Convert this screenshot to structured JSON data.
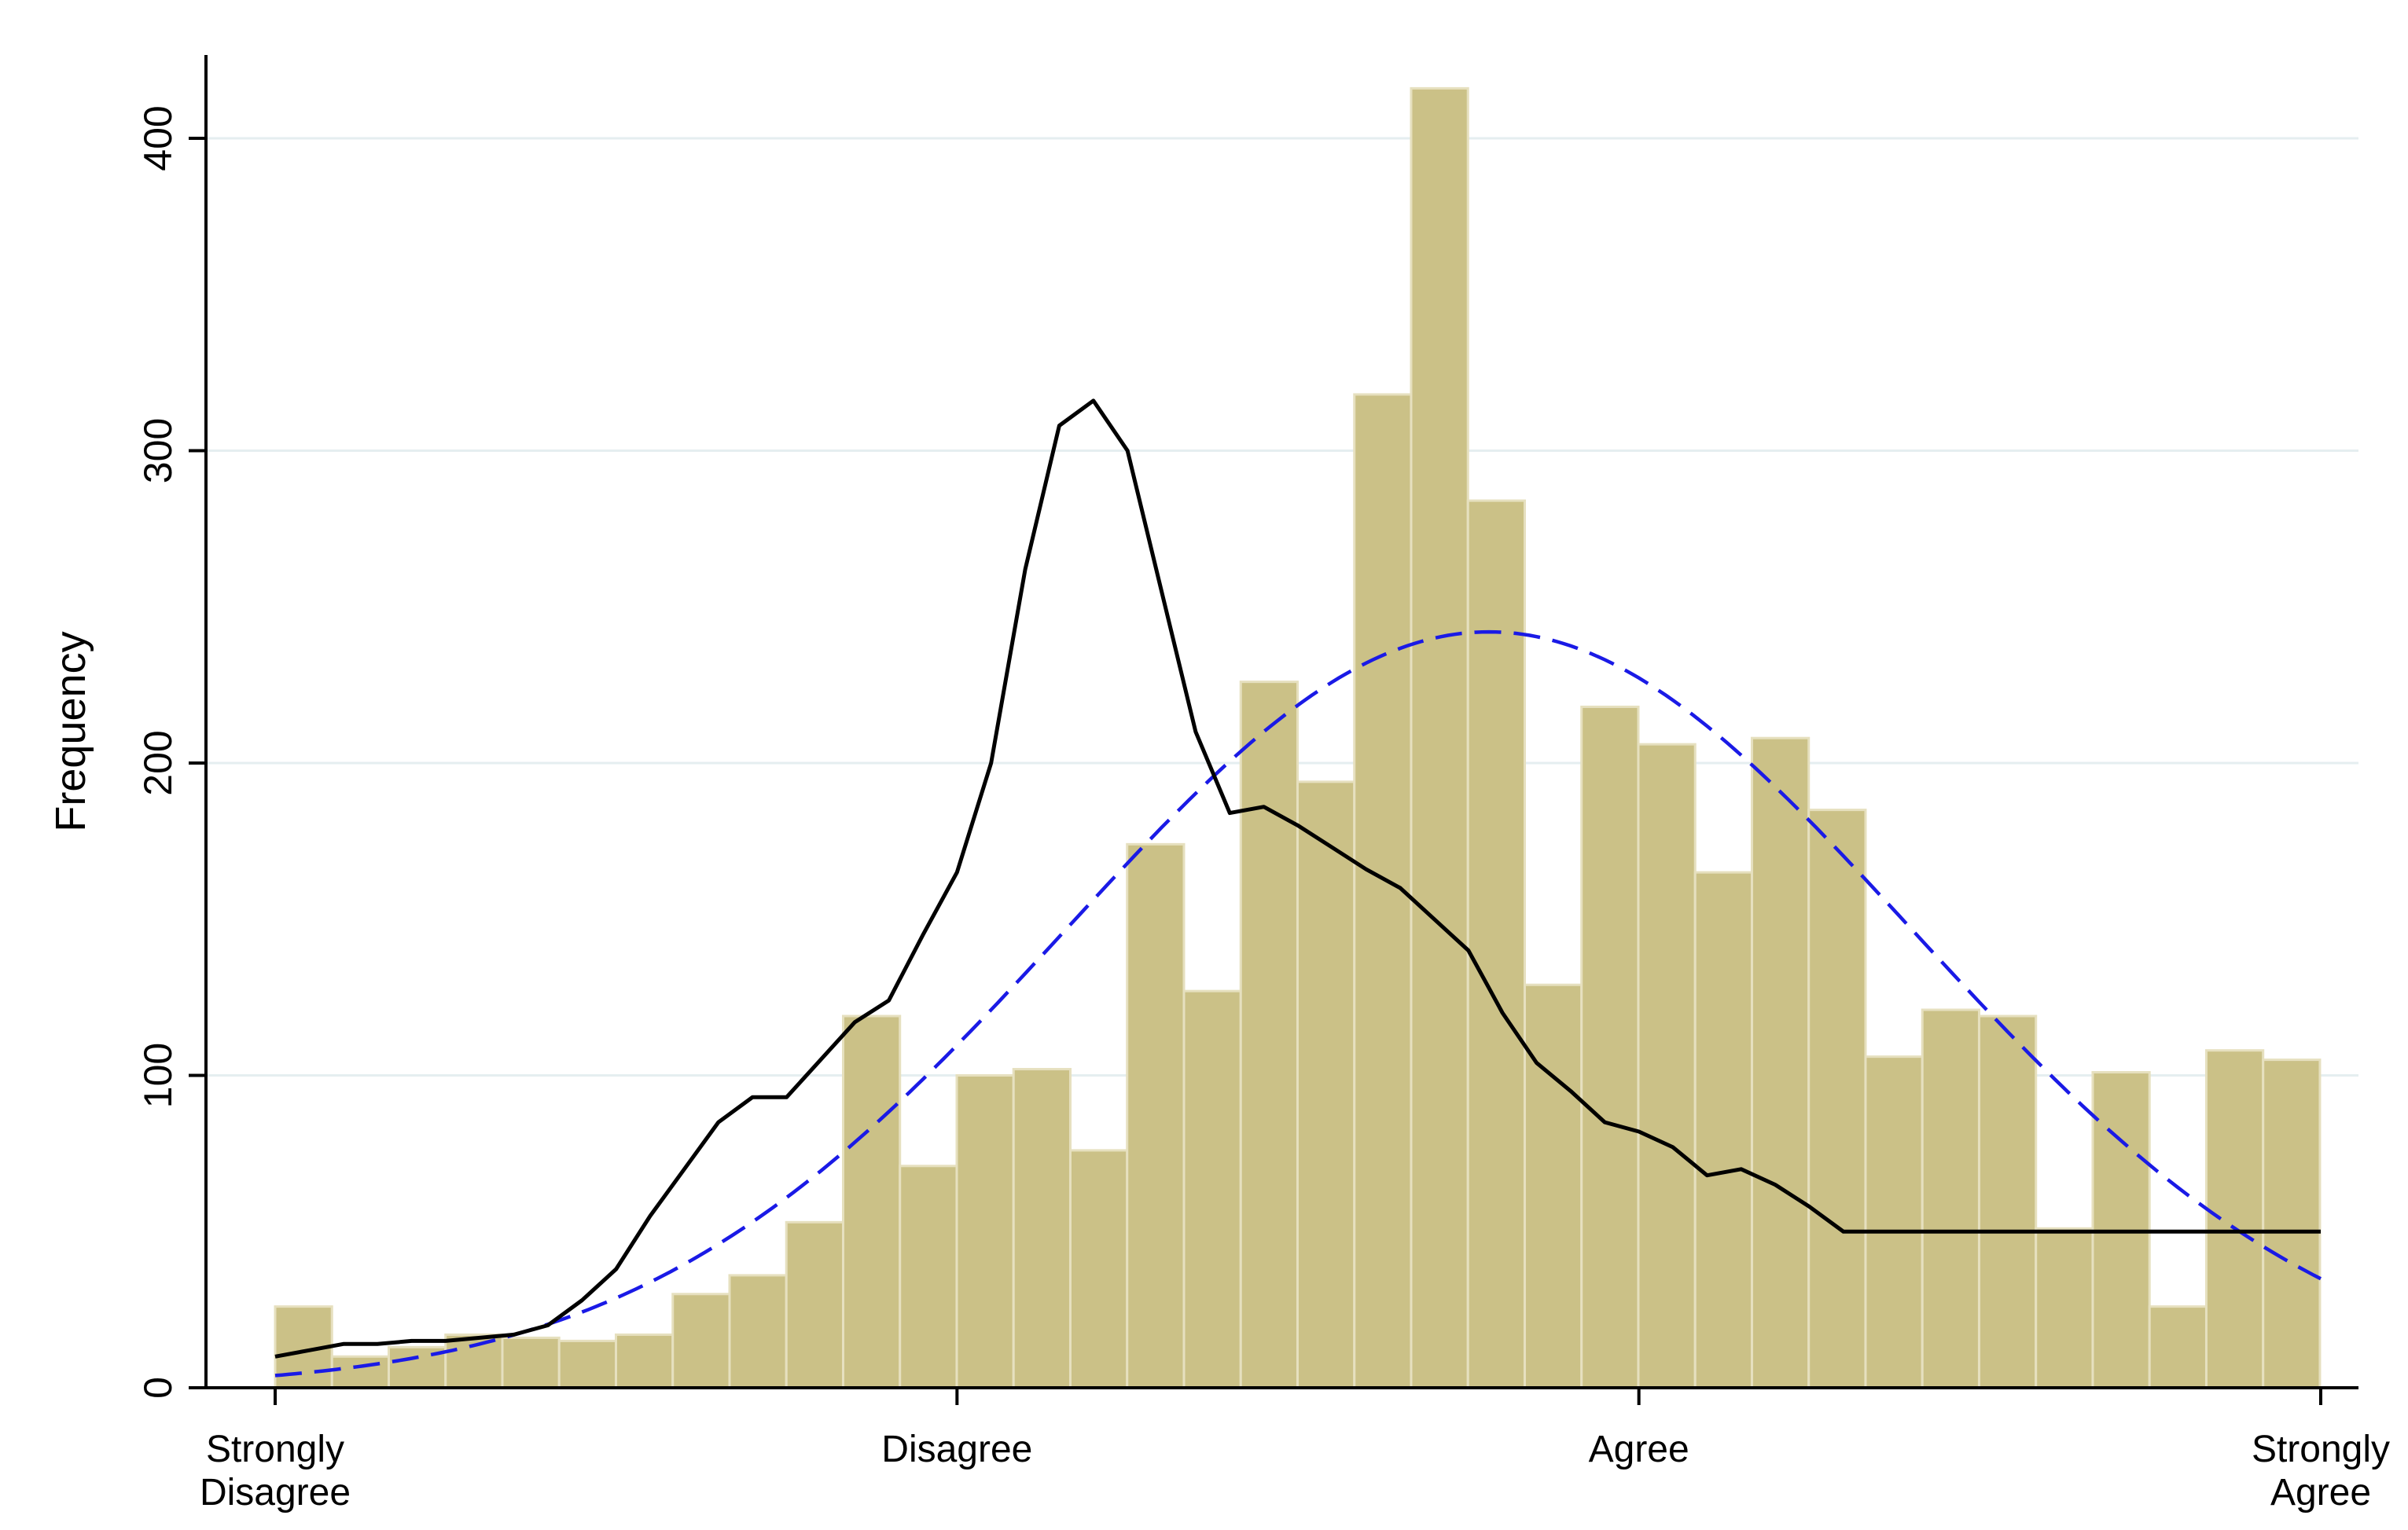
{
  "chart_data": {
    "type": "bar",
    "subtype": "histogram",
    "title": "",
    "xlabel": "",
    "ylabel": "Frequency",
    "xlim": [
      1,
      4
    ],
    "ylim": [
      0,
      400
    ],
    "yticks": [
      0,
      100,
      200,
      300,
      400
    ],
    "xticks": [
      {
        "value": 1,
        "lines": [
          "Strongly",
          "Disagree"
        ]
      },
      {
        "value": 2,
        "lines": [
          "Disagree"
        ]
      },
      {
        "value": 3,
        "lines": [
          "Agree"
        ]
      },
      {
        "value": 4,
        "lines": [
          "Strongly",
          "Agree"
        ]
      }
    ],
    "grid": true,
    "legend": "none",
    "bin_width": 0.0833,
    "bins_start": 1,
    "values": [
      26,
      10,
      13,
      17,
      16,
      15,
      17,
      30,
      36,
      53,
      119,
      71,
      100,
      102,
      76,
      174,
      127,
      226,
      194,
      318,
      416,
      284,
      129,
      218,
      206,
      165,
      208,
      185,
      106,
      121,
      119,
      51,
      101,
      26,
      108,
      105
    ],
    "density_curve": {
      "x": [
        1.0,
        1.05,
        1.1,
        1.15,
        1.2,
        1.25,
        1.3,
        1.35,
        1.4,
        1.45,
        1.5,
        1.55,
        1.6,
        1.65,
        1.7,
        1.75,
        1.8,
        1.85,
        1.9,
        1.95,
        2.0,
        2.05,
        2.1,
        2.15,
        2.2,
        2.25,
        2.3,
        2.35,
        2.4,
        2.45,
        2.5,
        2.55,
        2.6,
        2.65,
        2.7,
        2.72,
        2.75,
        2.78,
        2.8,
        2.85,
        2.9,
        2.95,
        3.0,
        3.05,
        3.1,
        3.15,
        3.2,
        3.25,
        3.3,
        3.35,
        3.4,
        3.45,
        3.5,
        3.55,
        3.6,
        3.65,
        3.7,
        3.75,
        3.8,
        3.85,
        3.9,
        3.95,
        4.0
      ],
      "y": [
        10,
        12,
        14,
        14,
        15,
        15,
        16,
        17,
        20,
        28,
        38,
        55,
        70,
        85,
        93,
        93,
        105,
        117,
        124,
        145,
        165,
        200,
        262,
        308,
        316,
        300,
        255,
        210,
        184,
        186,
        180,
        173,
        166,
        160,
        150,
        146,
        140,
        128,
        120,
        104,
        95,
        85,
        82,
        77,
        68,
        70,
        65,
        58,
        50,
        50,
        50,
        50,
        50,
        50,
        50,
        50,
        50,
        50,
        50,
        50,
        50,
        50,
        50
      ]
    },
    "normal_curve": {
      "mean": 2.78,
      "sd": 0.62,
      "peak": 242
    }
  }
}
